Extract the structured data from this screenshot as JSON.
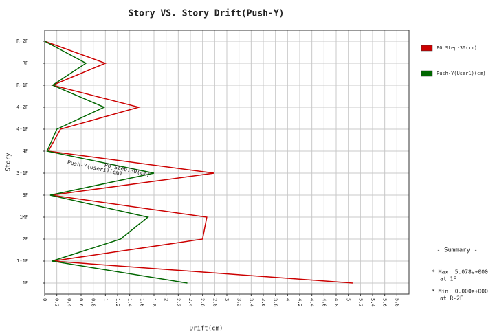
{
  "chart_data": {
    "type": "line",
    "orientation": "horizontal",
    "title": "Story VS. Story Drift(Push-Y)",
    "x_label": "Drift(cm)",
    "y_label": "Story",
    "categories": [
      "R-2F",
      "RF",
      "R-1F",
      "4-2F",
      "4-1F",
      "4F",
      "3-1F",
      "3F",
      "1MF",
      "2F",
      "1-1F",
      "1F"
    ],
    "series": [
      {
        "name": "P0 Step:30(cm)",
        "color": "#cc0000",
        "values": [
          0,
          1.0,
          0.13,
          1.55,
          0.26,
          0.06,
          2.79,
          0.11,
          2.67,
          2.6,
          0.13,
          5.078
        ]
      },
      {
        "name": "Push-Y(User1)(cm)",
        "color": "#006600",
        "values": [
          0,
          0.68,
          0.13,
          0.98,
          0.2,
          0.04,
          1.8,
          0.09,
          1.7,
          1.25,
          0.12,
          2.35
        ]
      }
    ],
    "xlim": [
      0,
      6
    ],
    "xticks": [
      0,
      0.2,
      0.4,
      0.6,
      0.8,
      1,
      1.2,
      1.4,
      1.6,
      1.8,
      2,
      2.2,
      2.4,
      2.6,
      2.8,
      3,
      3.2,
      3.4,
      3.6,
      3.8,
      4,
      4.2,
      4.4,
      4.6,
      4.8,
      5,
      5.2,
      5.4,
      5.6,
      5.8
    ],
    "grid": true,
    "summary": {
      "title": "- Summary -",
      "max": "* Max: 5.078e+000",
      "max_at": "at 1F",
      "min": "* Min: 0.000e+000",
      "min_at": "at R-2F"
    }
  }
}
